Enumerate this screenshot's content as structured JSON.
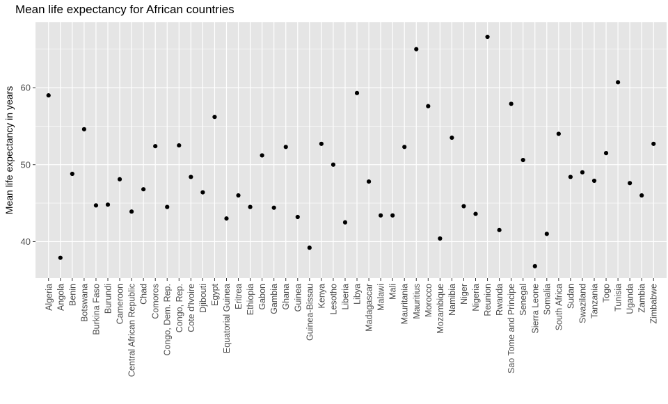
{
  "chart_data": {
    "type": "scatter",
    "title": "Mean life expectancy for African countries",
    "xlabel": "",
    "ylabel": "Mean life expectancy in years",
    "ylim": [
      35.25,
      68.5
    ],
    "yticks": [
      40,
      50,
      60
    ],
    "grid": true,
    "legend": "none",
    "categories": [
      "Algeria",
      "Angola",
      "Benin",
      "Botswana",
      "Burkina Faso",
      "Burundi",
      "Cameroon",
      "Central African Republic",
      "Chad",
      "Comoros",
      "Congo, Dem. Rep.",
      "Congo, Rep.",
      "Cote d'Ivoire",
      "Djibouti",
      "Egypt",
      "Equatorial Guinea",
      "Eritrea",
      "Ethiopia",
      "Gabon",
      "Gambia",
      "Ghana",
      "Guinea",
      "Guinea-Bissau",
      "Kenya",
      "Lesotho",
      "Liberia",
      "Libya",
      "Madagascar",
      "Malawi",
      "Mali",
      "Mauritania",
      "Mauritius",
      "Morocco",
      "Mozambique",
      "Namibia",
      "Niger",
      "Nigeria",
      "Reunion",
      "Rwanda",
      "Sao Tome and Principe",
      "Senegal",
      "Sierra Leone",
      "Somalia",
      "South Africa",
      "Sudan",
      "Swaziland",
      "Tanzania",
      "Togo",
      "Tunisia",
      "Uganda",
      "Zambia",
      "Zimbabwe"
    ],
    "values": [
      59.0,
      37.9,
      48.8,
      54.6,
      44.7,
      44.8,
      48.1,
      43.9,
      46.8,
      52.4,
      44.5,
      52.5,
      48.4,
      46.4,
      56.2,
      43.0,
      46.0,
      44.5,
      51.2,
      44.4,
      52.3,
      43.2,
      39.2,
      52.7,
      50.0,
      42.5,
      59.3,
      47.8,
      43.4,
      43.4,
      52.3,
      65.0,
      57.6,
      40.4,
      53.5,
      44.6,
      43.6,
      66.6,
      41.5,
      57.9,
      50.6,
      36.8,
      41.0,
      54.0,
      48.4,
      49.0,
      47.9,
      51.5,
      60.7,
      47.6,
      46.0,
      52.7
    ]
  },
  "colors": {
    "panel_bg": "#e5e5e5",
    "grid_major": "#ffffff",
    "point": "#000000",
    "tick_text": "#4d4d4d"
  }
}
